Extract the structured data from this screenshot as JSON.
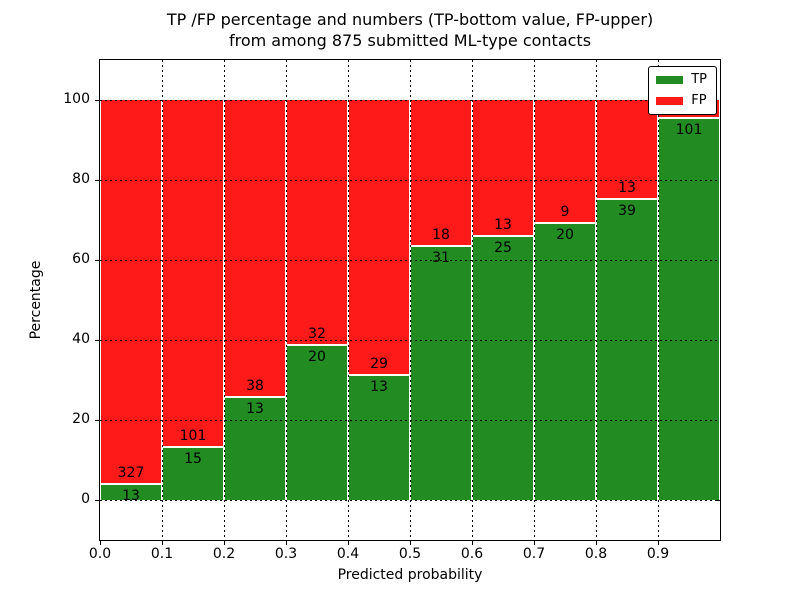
{
  "figure": {
    "title_line1": "TP /FP percentage and numbers (TP-bottom value, FP-upper)",
    "title_line2": "from among 875 submitted ML-type contacts",
    "background": "#ffffff"
  },
  "axes": {
    "xlabel": "Predicted probability",
    "ylabel": "Percentage",
    "x_tick_labels": [
      "0.0",
      "0.1",
      "0.2",
      "0.3",
      "0.4",
      "0.5",
      "0.6",
      "0.7",
      "0.8",
      "0.9"
    ],
    "x_tick_values": [
      0.0,
      0.1,
      0.2,
      0.3,
      0.4,
      0.5,
      0.6,
      0.7,
      0.8,
      0.9
    ],
    "y_tick_labels": [
      "0",
      "20",
      "40",
      "60",
      "80",
      "100"
    ],
    "y_tick_values": [
      0,
      20,
      40,
      60,
      80,
      100
    ],
    "xlim": [
      0.0,
      1.0
    ],
    "ylim": [
      -10,
      110
    ],
    "grid_style": "dotted",
    "grid_on": true
  },
  "legend": {
    "position": "upper right",
    "items": [
      {
        "label": "TP",
        "color": "#228B22"
      },
      {
        "label": "FP",
        "color": "#FF1A1A"
      }
    ]
  },
  "colors": {
    "tp": "#228B22",
    "fp": "#FF1A1A",
    "grid": "#000000",
    "frame": "#000000",
    "text": "#000000",
    "background": "#ffffff"
  },
  "chart_data": {
    "type": "bar",
    "stacked": true,
    "normalized_to_percent": true,
    "title": "TP /FP percentage and numbers (TP-bottom value, FP-upper) from among 875 submitted ML-type contacts",
    "xlabel": "Predicted probability",
    "ylabel": "Percentage",
    "total_contacts_in_title": 875,
    "bin_starts": [
      0.0,
      0.1,
      0.2,
      0.3,
      0.4,
      0.5,
      0.6,
      0.7,
      0.8,
      0.9
    ],
    "bin_width": 0.1,
    "series": [
      {
        "name": "TP",
        "counts": [
          13,
          15,
          13,
          20,
          13,
          31,
          25,
          20,
          39,
          101
        ]
      },
      {
        "name": "FP",
        "counts": [
          327,
          101,
          38,
          32,
          29,
          18,
          13,
          9,
          13,
          5
        ]
      }
    ],
    "tp_percent_heights": [
      3.8,
      12.9,
      25.5,
      38.5,
      31.0,
      63.3,
      65.8,
      69.0,
      75.0,
      95.3
    ],
    "tp_label_visible": [
      true,
      true,
      true,
      true,
      true,
      true,
      true,
      true,
      true,
      true
    ],
    "fp_label_visible": [
      true,
      true,
      true,
      true,
      true,
      true,
      true,
      true,
      true,
      false
    ],
    "ylim": [
      -10,
      110
    ],
    "xlim": [
      0.0,
      1.0
    ],
    "legend_position": "upper right"
  }
}
